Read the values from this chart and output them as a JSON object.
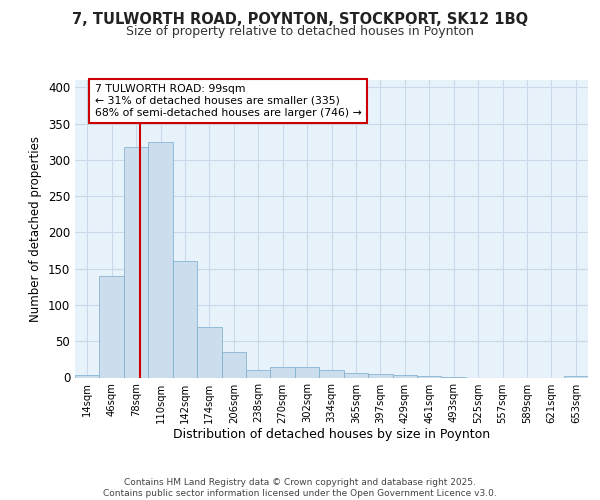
{
  "title1": "7, TULWORTH ROAD, POYNTON, STOCKPORT, SK12 1BQ",
  "title2": "Size of property relative to detached houses in Poynton",
  "xlabel": "Distribution of detached houses by size in Poynton",
  "ylabel": "Number of detached properties",
  "bar_labels": [
    "14sqm",
    "46sqm",
    "78sqm",
    "110sqm",
    "142sqm",
    "174sqm",
    "206sqm",
    "238sqm",
    "270sqm",
    "302sqm",
    "334sqm",
    "365sqm",
    "397sqm",
    "429sqm",
    "461sqm",
    "493sqm",
    "525sqm",
    "557sqm",
    "589sqm",
    "621sqm",
    "653sqm"
  ],
  "bar_values": [
    4,
    140,
    318,
    325,
    160,
    70,
    35,
    10,
    14,
    14,
    10,
    6,
    5,
    4,
    2,
    1,
    0,
    0,
    0,
    0,
    2
  ],
  "bar_color": "#ccdded",
  "bar_edge_color": "#7aabcc",
  "grid_color": "#c8daea",
  "bg_color": "#e8f2fb",
  "annotation_text": "7 TULWORTH ROAD: 99sqm\n← 31% of detached houses are smaller (335)\n68% of semi-detached houses are larger (746) →",
  "property_size_sqm": 99,
  "annotation_box_color": "#ffffff",
  "annotation_box_edge": "#cc0000",
  "red_line_color": "#cc0000",
  "footer_text": "Contains HM Land Registry data © Crown copyright and database right 2025.\nContains public sector information licensed under the Open Government Licence v3.0.",
  "ylim": [
    0,
    410
  ],
  "yticks": [
    0,
    50,
    100,
    150,
    200,
    250,
    300,
    350,
    400
  ]
}
